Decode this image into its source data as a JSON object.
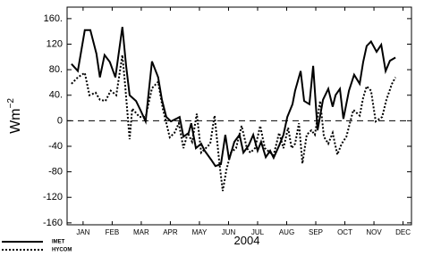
{
  "chart_data": {
    "type": "line",
    "xlabel": "2004",
    "ylabel": "Wm",
    "ylabel_superscript": "−2",
    "xlim": [
      0.45,
      12.29
    ],
    "ylim": [
      -163,
      178
    ],
    "xticks": [
      {
        "value": 1,
        "label": "JAN"
      },
      {
        "value": 2,
        "label": "FEB"
      },
      {
        "value": 3,
        "label": "MAR"
      },
      {
        "value": 4,
        "label": "APR"
      },
      {
        "value": 5,
        "label": "MAY"
      },
      {
        "value": 6,
        "label": "JUN"
      },
      {
        "value": 7,
        "label": "JUL"
      },
      {
        "value": 8,
        "label": "AUG"
      },
      {
        "value": 9,
        "label": "SEP"
      },
      {
        "value": 10,
        "label": "OCT"
      },
      {
        "value": 11,
        "label": "NOV"
      },
      {
        "value": 12,
        "label": "DEC"
      }
    ],
    "yticks": [
      {
        "value": 160,
        "label": "160."
      },
      120,
      {
        "value": 80,
        "label": "80."
      },
      {
        "value": 40,
        "label": "40."
      },
      0,
      -40,
      -80,
      -120,
      -160
    ],
    "reference_line": 0,
    "series": [
      {
        "name": "IMET",
        "color": "#000000",
        "style": "solid",
        "x": [
          0.6,
          0.82,
          1.06,
          1.25,
          1.46,
          1.58,
          1.74,
          1.92,
          2.11,
          2.35,
          2.48,
          2.6,
          2.82,
          2.97,
          3.15,
          3.37,
          3.58,
          3.71,
          3.86,
          4.02,
          4.2,
          4.32,
          4.45,
          4.63,
          4.72,
          4.88,
          5.06,
          5.18,
          5.4,
          5.55,
          5.74,
          5.89,
          6.02,
          6.2,
          6.38,
          6.51,
          6.69,
          6.85,
          7.0,
          7.12,
          7.28,
          7.43,
          7.55,
          7.74,
          7.89,
          8.02,
          8.2,
          8.29,
          8.48,
          8.6,
          8.78,
          8.91,
          9.06,
          9.25,
          9.43,
          9.58,
          9.68,
          9.83,
          9.95,
          10.14,
          10.32,
          10.51,
          10.63,
          10.75,
          10.9,
          11.09,
          11.25,
          11.4,
          11.55,
          11.74
        ],
        "values": [
          89,
          78,
          142,
          142,
          105,
          68,
          103,
          92,
          68,
          147,
          86,
          40,
          31,
          17,
          -1,
          93,
          68,
          33,
          6,
          -1,
          3,
          6,
          -25,
          -19,
          -4,
          -43,
          -36,
          -47,
          -61,
          -71,
          -68,
          -22,
          -61,
          -33,
          -22,
          -50,
          -39,
          -22,
          -47,
          -33,
          -57,
          -47,
          -58,
          -39,
          -22,
          6,
          26,
          47,
          78,
          31,
          26,
          86,
          -15,
          33,
          50,
          22,
          40,
          50,
          3,
          47,
          72,
          58,
          92,
          117,
          124,
          108,
          119,
          78,
          94,
          99
        ]
      },
      {
        "name": "HYCOM",
        "color": "#000000",
        "style": "dotted",
        "x": [
          0.6,
          0.82,
          1.06,
          1.22,
          1.43,
          1.58,
          1.77,
          1.95,
          2.14,
          2.35,
          2.45,
          2.6,
          2.69,
          2.94,
          3.15,
          3.37,
          3.58,
          3.74,
          3.98,
          4.14,
          4.29,
          4.45,
          4.6,
          4.75,
          4.91,
          5.06,
          5.22,
          5.37,
          5.52,
          5.68,
          5.8,
          5.92,
          6.08,
          6.26,
          6.45,
          6.63,
          6.75,
          6.91,
          7.09,
          7.25,
          7.43,
          7.55,
          7.74,
          7.89,
          8.05,
          8.17,
          8.29,
          8.42,
          8.54,
          8.69,
          8.85,
          8.97,
          9.15,
          9.28,
          9.43,
          9.58,
          9.74,
          9.89,
          10.05,
          10.29,
          10.51,
          10.63,
          10.75,
          10.9,
          11.06,
          11.28,
          11.43,
          11.62,
          11.74
        ],
        "values": [
          58,
          68,
          75,
          40,
          44,
          33,
          31,
          47,
          40,
          103,
          54,
          -29,
          19,
          6,
          6,
          51,
          61,
          19,
          -26,
          -19,
          -4,
          -43,
          -19,
          -33,
          11,
          -50,
          -43,
          -36,
          8,
          -64,
          -110,
          -78,
          -50,
          -43,
          -8,
          -43,
          -50,
          -43,
          -8,
          -43,
          -50,
          -54,
          -19,
          -43,
          -11,
          -43,
          -36,
          -4,
          -67,
          -22,
          -15,
          -22,
          31,
          -25,
          -36,
          -19,
          -53,
          -36,
          -25,
          17,
          8,
          36,
          54,
          47,
          -1,
          6,
          33,
          58,
          68
        ]
      }
    ]
  }
}
